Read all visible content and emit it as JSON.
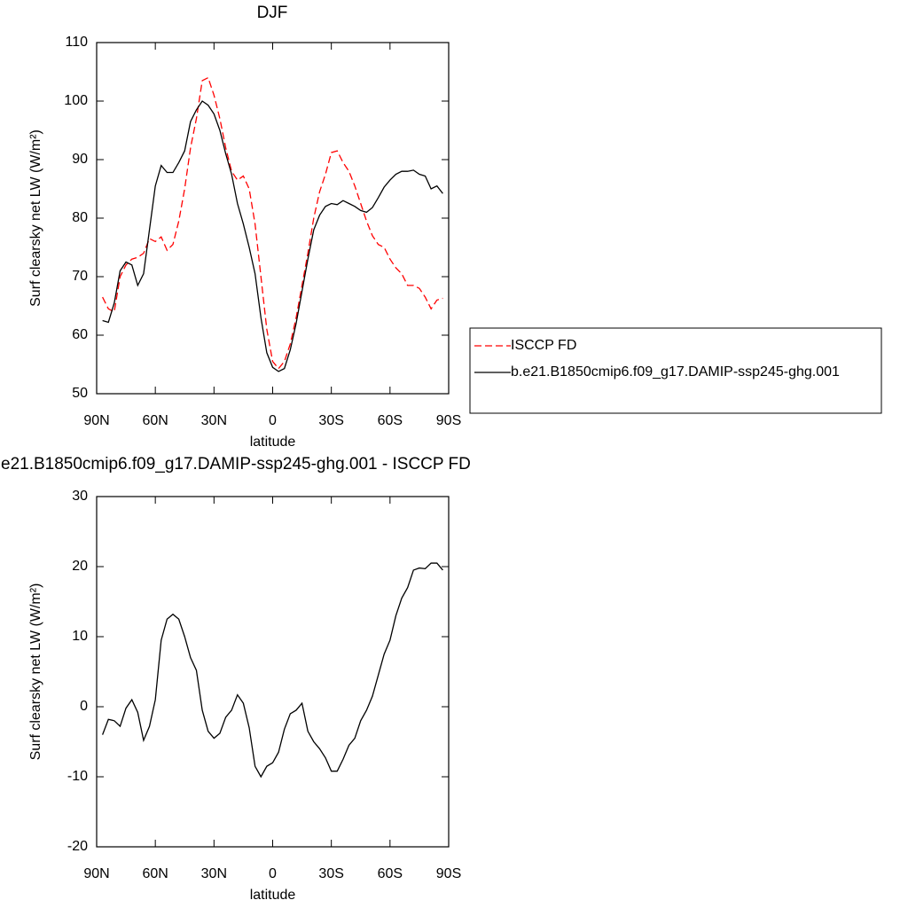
{
  "chart_data": [
    {
      "type": "line",
      "title": "DJF",
      "xlabel": "latitude",
      "ylabel": "Surf clearsky net LW (W/m²)",
      "x": [
        87,
        84,
        81,
        78,
        75,
        72,
        69,
        66,
        63,
        60,
        57,
        54,
        51,
        48,
        45,
        42,
        39,
        36,
        33,
        30,
        27,
        24,
        21,
        18,
        15,
        12,
        9,
        6,
        3,
        0,
        -3,
        -6,
        -9,
        -12,
        -15,
        -18,
        -21,
        -24,
        -27,
        -30,
        -33,
        -36,
        -39,
        -42,
        -45,
        -48,
        -51,
        -54,
        -57,
        -60,
        -63,
        -66,
        -69,
        -72,
        -75,
        -78,
        -81,
        -84,
        -87
      ],
      "xlim": [
        90,
        -90
      ],
      "xticks": [
        {
          "value": 90,
          "label": "90N"
        },
        {
          "value": 60,
          "label": "60N"
        },
        {
          "value": 30,
          "label": "30N"
        },
        0,
        {
          "value": -30,
          "label": "30S"
        },
        {
          "value": -60,
          "label": "60S"
        },
        {
          "value": -90,
          "label": "90S"
        }
      ],
      "ylim": [
        50,
        110
      ],
      "yticks": [
        50,
        60,
        70,
        80,
        90,
        100,
        110
      ],
      "legend": "right",
      "series": [
        {
          "name": "ISCCP FD",
          "color": "#ff0000",
          "style": "dashed",
          "values": [
            66.5,
            64.5,
            64,
            70,
            72,
            73,
            73.3,
            74,
            76.5,
            76,
            76.8,
            74.5,
            75.5,
            79.5,
            85,
            92,
            97,
            103.5,
            104,
            101,
            97,
            92,
            88,
            86.5,
            87.2,
            85,
            79,
            70,
            61,
            55.5,
            54.3,
            55.5,
            58.5,
            63,
            68.5,
            74,
            80,
            84.5,
            87.5,
            91.2,
            91.5,
            89.5,
            88,
            85.5,
            82.5,
            79.5,
            77,
            75.5,
            75,
            73,
            71.5,
            70.5,
            68.5,
            68.5,
            68,
            66.5,
            64.5,
            66,
            66.3
          ]
        },
        {
          "name": "b.e21.B1850cmip6.f09_g17.DAMIP-ssp245-ghg.001",
          "color": "#000000",
          "style": "solid",
          "values": [
            62.5,
            62.2,
            65.5,
            71,
            72.5,
            72,
            68.5,
            70.5,
            78,
            85.5,
            89,
            87.8,
            87.8,
            89.5,
            91.5,
            96.5,
            98.5,
            100,
            99.3,
            97.8,
            95,
            91,
            87.5,
            82.5,
            79,
            75,
            70.5,
            63,
            57,
            54.5,
            53.8,
            54.3,
            57.5,
            62,
            67.5,
            73,
            78,
            80.5,
            82,
            82.5,
            82.3,
            83,
            82.5,
            82,
            81.3,
            81,
            81.8,
            83.5,
            85.3,
            86.5,
            87.5,
            88,
            88,
            88.2,
            87.5,
            87.2,
            85,
            85.5,
            84.2
          ]
        }
      ]
    },
    {
      "type": "line",
      "title": "e21.B1850cmip6.f09_g17.DAMIP-ssp245-ghg.001 - ISCCP FD",
      "xlabel": "latitude",
      "ylabel": "Surf clearsky net LW (W/m²)",
      "x": [
        87,
        84,
        81,
        78,
        75,
        72,
        69,
        66,
        63,
        60,
        57,
        54,
        51,
        48,
        45,
        42,
        39,
        36,
        33,
        30,
        27,
        24,
        21,
        18,
        15,
        12,
        9,
        6,
        3,
        0,
        -3,
        -6,
        -9,
        -12,
        -15,
        -18,
        -21,
        -24,
        -27,
        -30,
        -33,
        -36,
        -39,
        -42,
        -45,
        -48,
        -51,
        -54,
        -57,
        -60,
        -63,
        -66,
        -69,
        -72,
        -75,
        -78,
        -81,
        -84,
        -87
      ],
      "xlim": [
        90,
        -90
      ],
      "xticks": [
        {
          "value": 90,
          "label": "90N"
        },
        {
          "value": 60,
          "label": "60N"
        },
        {
          "value": 30,
          "label": "30N"
        },
        0,
        {
          "value": -30,
          "label": "30S"
        },
        {
          "value": -60,
          "label": "60S"
        },
        {
          "value": -90,
          "label": "90S"
        }
      ],
      "ylim": [
        -20,
        30
      ],
      "yticks": [
        -20,
        -10,
        0,
        10,
        20,
        30
      ],
      "color": "#000000",
      "values": [
        -4,
        -1.8,
        -2,
        -2.8,
        -0.2,
        1,
        -0.8,
        -4.8,
        -2.8,
        1,
        9.5,
        12.5,
        13.2,
        12.5,
        10,
        7,
        5.2,
        -0.5,
        -3.5,
        -4.5,
        -3.8,
        -1.5,
        -0.5,
        1.7,
        0.5,
        -3,
        -8.5,
        -10,
        -8.5,
        -8,
        -6.5,
        -3.2,
        -1,
        -0.5,
        0.5,
        -3.5,
        -5,
        -6,
        -7.3,
        -9.2,
        -9.2,
        -7.5,
        -5.5,
        -4.5,
        -2,
        -0.5,
        1.5,
        4.5,
        7.5,
        9.5,
        13,
        15.5,
        17,
        19.5,
        19.8,
        19.7,
        20.5,
        20.5,
        19.5
      ]
    }
  ]
}
